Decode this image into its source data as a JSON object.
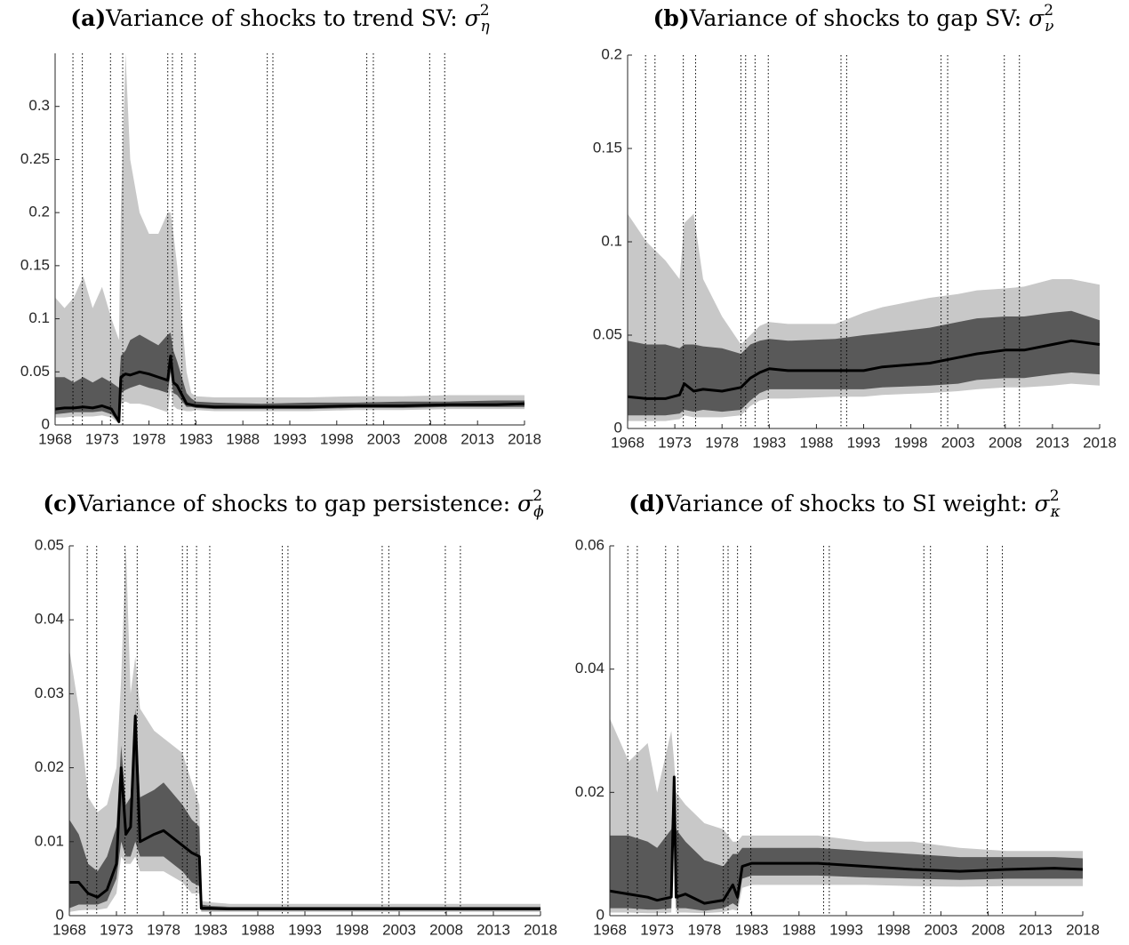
{
  "chart_data": [
    {
      "type": "band",
      "label": "(a)",
      "title": "Variance of shocks to trend SV: ",
      "symbol": "σ",
      "sup": "2",
      "sub": "η",
      "x": [
        1968,
        1969,
        1970,
        1971,
        1972,
        1973,
        1974,
        1974.8,
        1975,
        1975.5,
        1976,
        1977,
        1978,
        1979,
        1980,
        1980.3,
        1980.6,
        1981,
        1982,
        1982.5,
        1983,
        1985,
        1990,
        1995,
        2000,
        2005,
        2010,
        2015,
        2018
      ],
      "bands": [
        {
          "color": "#c8c8c8",
          "lower": [
            0.007,
            0.007,
            0.008,
            0.008,
            0.008,
            0.009,
            0.007,
            0.001,
            0.02,
            0.022,
            0.02,
            0.02,
            0.018,
            0.015,
            0.012,
            0.035,
            0.018,
            0.015,
            0.013,
            0.013,
            0.014,
            0.013,
            0.013,
            0.013,
            0.014,
            0.014,
            0.015,
            0.015,
            0.015
          ],
          "upper": [
            0.12,
            0.11,
            0.12,
            0.14,
            0.11,
            0.13,
            0.1,
            0.08,
            0.2,
            0.35,
            0.25,
            0.2,
            0.18,
            0.18,
            0.2,
            0.2,
            0.18,
            0.15,
            0.05,
            0.03,
            0.027,
            0.026,
            0.026,
            0.026,
            0.027,
            0.027,
            0.028,
            0.028,
            0.028
          ]
        },
        {
          "color": "#595959",
          "lower": [
            0.01,
            0.011,
            0.012,
            0.012,
            0.012,
            0.013,
            0.01,
            0.002,
            0.03,
            0.033,
            0.035,
            0.038,
            0.035,
            0.033,
            0.03,
            0.05,
            0.03,
            0.028,
            0.017,
            0.017,
            0.016,
            0.015,
            0.015,
            0.015,
            0.016,
            0.016,
            0.017,
            0.017,
            0.017
          ],
          "upper": [
            0.045,
            0.045,
            0.04,
            0.045,
            0.04,
            0.045,
            0.04,
            0.035,
            0.065,
            0.07,
            0.08,
            0.085,
            0.08,
            0.075,
            0.085,
            0.087,
            0.07,
            0.06,
            0.03,
            0.025,
            0.022,
            0.021,
            0.02,
            0.021,
            0.021,
            0.022,
            0.022,
            0.023,
            0.023
          ]
        }
      ],
      "line": {
        "color": "#000000",
        "values": [
          0.015,
          0.016,
          0.016,
          0.017,
          0.016,
          0.018,
          0.015,
          0.003,
          0.045,
          0.048,
          0.047,
          0.05,
          0.048,
          0.045,
          0.042,
          0.065,
          0.04,
          0.037,
          0.02,
          0.019,
          0.018,
          0.017,
          0.017,
          0.017,
          0.018,
          0.018,
          0.019,
          0.019,
          0.02
        ]
      },
      "vlines": [
        1969.9,
        1970.9,
        1973.9,
        1975.2,
        1980.0,
        1980.5,
        1981.5,
        1982.9,
        1990.6,
        1991.2,
        2001.2,
        2001.9,
        2007.9,
        2009.5
      ],
      "xlim": [
        1968,
        2018
      ],
      "xticks": [
        1968,
        1973,
        1978,
        1983,
        1988,
        1993,
        1998,
        2003,
        2008,
        2013,
        2018
      ],
      "ylim": [
        0,
        0.35
      ],
      "yticks": [
        0,
        0.05,
        0.1,
        0.15,
        0.2,
        0.25,
        0.3
      ]
    },
    {
      "type": "band",
      "label": "(b)",
      "title": "Variance of shocks to gap SV: ",
      "symbol": "σ",
      "sup": "2",
      "sub": "ν",
      "x": [
        1968,
        1970,
        1972,
        1973.5,
        1974,
        1975,
        1976,
        1978,
        1980,
        1981,
        1982,
        1983,
        1985,
        1990,
        1993,
        1995,
        2000,
        2003,
        2005,
        2008,
        2010,
        2013,
        2015,
        2018
      ],
      "bands": [
        {
          "color": "#c8c8c8",
          "lower": [
            0.004,
            0.004,
            0.004,
            0.005,
            0.007,
            0.006,
            0.006,
            0.006,
            0.007,
            0.012,
            0.015,
            0.016,
            0.016,
            0.017,
            0.017,
            0.018,
            0.019,
            0.02,
            0.021,
            0.022,
            0.022,
            0.023,
            0.024,
            0.023
          ],
          "upper": [
            0.115,
            0.1,
            0.09,
            0.08,
            0.11,
            0.115,
            0.08,
            0.06,
            0.045,
            0.05,
            0.055,
            0.057,
            0.056,
            0.056,
            0.062,
            0.065,
            0.07,
            0.072,
            0.074,
            0.075,
            0.076,
            0.08,
            0.08,
            0.077
          ]
        },
        {
          "color": "#595959",
          "lower": [
            0.007,
            0.007,
            0.007,
            0.008,
            0.01,
            0.009,
            0.01,
            0.009,
            0.01,
            0.015,
            0.019,
            0.021,
            0.021,
            0.021,
            0.021,
            0.022,
            0.023,
            0.024,
            0.026,
            0.027,
            0.027,
            0.029,
            0.03,
            0.029
          ],
          "upper": [
            0.047,
            0.045,
            0.045,
            0.043,
            0.045,
            0.045,
            0.044,
            0.043,
            0.04,
            0.045,
            0.047,
            0.048,
            0.047,
            0.048,
            0.05,
            0.051,
            0.054,
            0.057,
            0.059,
            0.06,
            0.06,
            0.062,
            0.063,
            0.058
          ]
        }
      ],
      "line": {
        "color": "#000000",
        "values": [
          0.017,
          0.016,
          0.016,
          0.018,
          0.024,
          0.02,
          0.021,
          0.02,
          0.022,
          0.027,
          0.03,
          0.032,
          0.031,
          0.031,
          0.031,
          0.033,
          0.035,
          0.038,
          0.04,
          0.042,
          0.042,
          0.045,
          0.047,
          0.045
        ]
      },
      "vlines": [
        1969.9,
        1970.9,
        1973.9,
        1975.2,
        1980.0,
        1980.5,
        1981.5,
        1982.9,
        1990.6,
        1991.2,
        2001.2,
        2001.9,
        2007.9,
        2009.5
      ],
      "xlim": [
        1968,
        2018
      ],
      "xticks": [
        1968,
        1973,
        1978,
        1983,
        1988,
        1993,
        1998,
        2003,
        2008,
        2013,
        2018
      ],
      "ylim": [
        0,
        0.2
      ],
      "yticks": [
        0,
        0.05,
        0.1,
        0.15,
        0.2
      ]
    },
    {
      "type": "band",
      "label": "(c)",
      "title": "Variance of shocks to gap persistence: ",
      "symbol": "σ",
      "sup": "2",
      "sub": "ϕ",
      "x": [
        1968,
        1969,
        1970,
        1971,
        1972,
        1973,
        1973.5,
        1974,
        1974.5,
        1975,
        1975.5,
        1977,
        1978,
        1980,
        1981,
        1981.8,
        1982,
        1983,
        1985,
        1990,
        2000,
        2010,
        2018
      ],
      "bands": [
        {
          "color": "#c8c8c8",
          "lower": [
            0.0005,
            0.0007,
            0.0008,
            0.0008,
            0.001,
            0.003,
            0.008,
            0.007,
            0.007,
            0.008,
            0.006,
            0.006,
            0.006,
            0.0045,
            0.003,
            0.003,
            0.0005,
            0.0005,
            0.0005,
            0.0005,
            0.0005,
            0.0005,
            0.0005
          ],
          "upper": [
            0.036,
            0.028,
            0.016,
            0.014,
            0.015,
            0.02,
            0.032,
            0.05,
            0.03,
            0.035,
            0.028,
            0.025,
            0.024,
            0.022,
            0.018,
            0.015,
            0.002,
            0.0018,
            0.0016,
            0.0016,
            0.0016,
            0.0016,
            0.0016
          ]
        },
        {
          "color": "#595959",
          "lower": [
            0.001,
            0.0015,
            0.0015,
            0.0015,
            0.002,
            0.005,
            0.01,
            0.008,
            0.008,
            0.01,
            0.008,
            0.008,
            0.008,
            0.006,
            0.0045,
            0.004,
            0.0007,
            0.0007,
            0.0007,
            0.0007,
            0.0007,
            0.0007,
            0.0007
          ],
          "upper": [
            0.013,
            0.011,
            0.007,
            0.006,
            0.008,
            0.012,
            0.023,
            0.015,
            0.016,
            0.028,
            0.016,
            0.017,
            0.018,
            0.015,
            0.013,
            0.012,
            0.0015,
            0.0013,
            0.0012,
            0.0012,
            0.0012,
            0.0012,
            0.0012
          ]
        }
      ],
      "line": {
        "color": "#000000",
        "values": [
          0.0045,
          0.0045,
          0.003,
          0.0025,
          0.0035,
          0.007,
          0.02,
          0.011,
          0.012,
          0.027,
          0.01,
          0.011,
          0.0115,
          0.0095,
          0.0085,
          0.008,
          0.001,
          0.001,
          0.0009,
          0.0009,
          0.0009,
          0.0009,
          0.0009
        ]
      },
      "vlines": [
        1969.9,
        1970.9,
        1973.9,
        1975.2,
        1980.0,
        1980.5,
        1981.5,
        1982.9,
        1990.6,
        1991.2,
        2001.2,
        2001.9,
        2007.9,
        2009.5
      ],
      "xlim": [
        1968,
        2018
      ],
      "xticks": [
        1968,
        1973,
        1978,
        1983,
        1988,
        1993,
        1998,
        2003,
        2008,
        2013,
        2018
      ],
      "ylim": [
        0,
        0.05
      ],
      "yticks": [
        0,
        0.01,
        0.02,
        0.03,
        0.04,
        0.05
      ]
    },
    {
      "type": "band",
      "label": "(d)",
      "title": "Variance of shocks to SI weight: ",
      "symbol": "σ",
      "sup": "2",
      "sub": "κ",
      "x": [
        1968,
        1970,
        1972,
        1973,
        1974.5,
        1974.8,
        1975,
        1976,
        1978,
        1980,
        1981,
        1981.5,
        1982,
        1983,
        1985,
        1990,
        1995,
        2000,
        2005,
        2010,
        2015,
        2018
      ],
      "bands": [
        {
          "color": "#c8c8c8",
          "lower": [
            0.0005,
            0.0005,
            0.0004,
            0.0004,
            0.0005,
            0.019,
            0.0005,
            0.0005,
            0.0004,
            0.0006,
            0.001,
            0.0008,
            0.0045,
            0.005,
            0.005,
            0.005,
            0.005,
            0.0048,
            0.0047,
            0.0048,
            0.0048,
            0.0048
          ],
          "upper": [
            0.032,
            0.025,
            0.028,
            0.02,
            0.03,
            0.025,
            0.02,
            0.018,
            0.015,
            0.014,
            0.012,
            0.012,
            0.013,
            0.013,
            0.013,
            0.013,
            0.012,
            0.012,
            0.011,
            0.0105,
            0.0105,
            0.0105
          ]
        },
        {
          "color": "#595959",
          "lower": [
            0.0012,
            0.0012,
            0.001,
            0.001,
            0.0012,
            0.02,
            0.0012,
            0.0012,
            0.0008,
            0.0012,
            0.002,
            0.0015,
            0.006,
            0.0065,
            0.0065,
            0.0065,
            0.0062,
            0.006,
            0.0058,
            0.006,
            0.006,
            0.006
          ],
          "upper": [
            0.013,
            0.013,
            0.012,
            0.011,
            0.014,
            0.023,
            0.014,
            0.012,
            0.009,
            0.008,
            0.01,
            0.01,
            0.011,
            0.011,
            0.011,
            0.011,
            0.0105,
            0.01,
            0.0095,
            0.0095,
            0.0095,
            0.0093
          ]
        }
      ],
      "line": {
        "color": "#000000",
        "values": [
          0.004,
          0.0035,
          0.003,
          0.0025,
          0.003,
          0.0225,
          0.003,
          0.0035,
          0.002,
          0.0025,
          0.005,
          0.003,
          0.008,
          0.0085,
          0.0085,
          0.0085,
          0.008,
          0.0075,
          0.0072,
          0.0075,
          0.0077,
          0.0075
        ]
      },
      "vlines": [
        1969.9,
        1970.9,
        1973.9,
        1975.2,
        1980.0,
        1980.5,
        1981.5,
        1982.9,
        1990.6,
        1991.2,
        2001.2,
        2001.9,
        2007.9,
        2009.5
      ],
      "xlim": [
        1968,
        2018
      ],
      "xticks": [
        1968,
        1973,
        1978,
        1983,
        1988,
        1993,
        1998,
        2003,
        2008,
        2013,
        2018
      ],
      "ylim": [
        0,
        0.06
      ],
      "yticks": [
        0,
        0.02,
        0.04,
        0.06
      ]
    }
  ]
}
